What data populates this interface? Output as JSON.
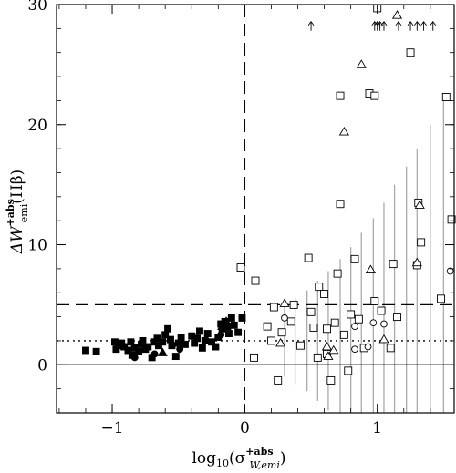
{
  "chart_data": {
    "type": "scatter",
    "title": "",
    "xlabel": {
      "base": "log",
      "sub": "10",
      "open": "(σ",
      "sup": "+abs",
      "subscript": "W,emi",
      "close": ")"
    },
    "ylabel": {
      "delta": "ΔW",
      "sup": "+abs",
      "sub": "emi",
      "rest": "(Hβ)"
    },
    "xlim": [
      -1.42,
      1.58
    ],
    "ylim": [
      -4,
      30
    ],
    "x_ticks": [
      -1,
      0,
      1
    ],
    "x_tick_labels": [
      "−1",
      "0",
      "1"
    ],
    "y_ticks": [
      0,
      10,
      20,
      30
    ],
    "y_tick_labels": [
      "0",
      "10",
      "20",
      "30"
    ],
    "reference_lines": [
      {
        "orientation": "h",
        "value": 0,
        "style": "solid"
      },
      {
        "orientation": "h",
        "value": 5,
        "style": "dashed"
      },
      {
        "orientation": "h",
        "value": 2,
        "style": "dotted"
      },
      {
        "orientation": "v",
        "value": 0,
        "style": "dashed"
      }
    ],
    "series": [
      {
        "marker": "filled-square",
        "points": [
          [
            -1.2,
            1.2
          ],
          [
            -1.12,
            1.1
          ],
          [
            -0.98,
            1.9
          ],
          [
            -0.97,
            1.3
          ],
          [
            -0.95,
            1.6
          ],
          [
            -0.93,
            1.8
          ],
          [
            -0.91,
            1.5
          ],
          [
            -0.88,
            1.2
          ],
          [
            -0.86,
            1.9
          ],
          [
            -0.85,
            0.8
          ],
          [
            -0.83,
            1.4
          ],
          [
            -0.8,
            1.1
          ],
          [
            -0.78,
            1.7
          ],
          [
            -0.77,
            2.0
          ],
          [
            -0.75,
            1.3
          ],
          [
            -0.73,
            1.5
          ],
          [
            -0.7,
            0.6
          ],
          [
            -0.68,
            1.9
          ],
          [
            -0.66,
            2.2
          ],
          [
            -0.65,
            1.6
          ],
          [
            -0.62,
            1.9
          ],
          [
            -0.6,
            2.5
          ],
          [
            -0.58,
            3.0
          ],
          [
            -0.56,
            2.1
          ],
          [
            -0.55,
            1.6
          ],
          [
            -0.52,
            0.7
          ],
          [
            -0.5,
            1.8
          ],
          [
            -0.48,
            2.3
          ],
          [
            -0.45,
            1.7
          ],
          [
            -0.4,
            2.4
          ],
          [
            -0.38,
            1.8
          ],
          [
            -0.36,
            2.2
          ],
          [
            -0.34,
            2.8
          ],
          [
            -0.32,
            1.4
          ],
          [
            -0.3,
            2.0
          ],
          [
            -0.28,
            2.6
          ],
          [
            -0.25,
            1.9
          ],
          [
            -0.22,
            1.5
          ],
          [
            -0.2,
            2.3
          ],
          [
            -0.18,
            3.4
          ],
          [
            -0.17,
            3.0
          ],
          [
            -0.15,
            3.6
          ],
          [
            -0.13,
            3.2
          ],
          [
            -0.12,
            2.6
          ],
          [
            -0.1,
            3.9
          ],
          [
            -0.08,
            3.3
          ],
          [
            -0.05,
            2.7
          ],
          [
            -0.02,
            3.9
          ]
        ]
      },
      {
        "marker": "filled-circle",
        "points": [
          [
            -0.92,
            1.6
          ],
          [
            -0.83,
            0.6
          ],
          [
            -0.68,
            0.9
          ],
          [
            -0.49,
            1.3
          ],
          [
            -0.18,
            2.5
          ]
        ]
      },
      {
        "marker": "filled-triangle",
        "points": [
          [
            -0.62,
            1.0
          ],
          [
            -0.17,
            3.2
          ],
          [
            -0.14,
            3.6
          ]
        ]
      },
      {
        "marker": "open-square",
        "points": [
          [
            -0.03,
            8.1
          ],
          [
            0.07,
            0.6
          ],
          [
            0.08,
            7.0
          ],
          [
            0.17,
            3.2
          ],
          [
            0.2,
            2.0
          ],
          [
            0.22,
            4.8
          ],
          [
            0.28,
            2.7
          ],
          [
            0.35,
            3.6
          ],
          [
            0.37,
            5.0
          ],
          [
            0.42,
            1.6
          ],
          [
            0.48,
            8.9
          ],
          [
            0.5,
            4.4
          ],
          [
            0.52,
            3.1
          ],
          [
            0.55,
            0.6
          ],
          [
            0.56,
            6.5
          ],
          [
            0.6,
            5.9
          ],
          [
            0.62,
            0.9
          ],
          [
            0.65,
            -1.3
          ],
          [
            0.68,
            3.5
          ],
          [
            0.7,
            7.6
          ],
          [
            0.72,
            22.4
          ],
          [
            0.72,
            13.4
          ],
          [
            0.75,
            2.5
          ],
          [
            0.78,
            -0.5
          ],
          [
            0.8,
            4.2
          ],
          [
            0.83,
            8.8
          ],
          [
            0.86,
            3.8
          ],
          [
            0.9,
            1.4
          ],
          [
            0.94,
            22.6
          ],
          [
            0.98,
            22.4
          ],
          [
            0.98,
            5.3
          ],
          [
            1.0,
            29.7
          ],
          [
            1.03,
            4.5
          ],
          [
            1.1,
            1.4
          ],
          [
            1.12,
            8.4
          ],
          [
            1.15,
            4.0
          ],
          [
            1.25,
            26.0
          ],
          [
            1.3,
            8.3
          ],
          [
            1.31,
            13.5
          ],
          [
            1.33,
            10.2
          ],
          [
            1.48,
            5.5
          ],
          [
            1.52,
            22.3
          ],
          [
            1.56,
            12.1
          ],
          [
            0.25,
            -1.3
          ],
          [
            0.62,
            3.0
          ]
        ]
      },
      {
        "marker": "open-circle",
        "points": [
          [
            0.3,
            3.9
          ],
          [
            0.83,
            3.2
          ],
          [
            0.83,
            1.3
          ],
          [
            0.93,
            1.5
          ],
          [
            0.97,
            3.5
          ],
          [
            1.05,
            3.4
          ],
          [
            1.55,
            7.8
          ]
        ]
      },
      {
        "marker": "open-triangle",
        "points": [
          [
            0.27,
            1.8
          ],
          [
            0.3,
            5.1
          ],
          [
            0.62,
            1.5
          ],
          [
            0.63,
            0.7
          ],
          [
            0.67,
            1.2
          ],
          [
            0.75,
            19.4
          ],
          [
            0.88,
            25.0
          ],
          [
            0.95,
            7.9
          ],
          [
            1.05,
            2.1
          ],
          [
            1.15,
            29.1
          ],
          [
            1.3,
            8.5
          ],
          [
            1.32,
            13.3
          ]
        ]
      }
    ],
    "error_bar_x": [
      0.3,
      0.38,
      0.47,
      0.55,
      0.63,
      0.72,
      0.8,
      0.88,
      0.97,
      1.05,
      1.13,
      1.22,
      1.3,
      1.4,
      1.5
    ],
    "error_bar_half": [
      3.0,
      3.6,
      4.2,
      5.0,
      5.8,
      6.8,
      7.8,
      9.0,
      10.2,
      11.5,
      13.0,
      14.5,
      16.0,
      18.0,
      20.0
    ],
    "lower_limits": [
      [
        0.5,
        28.2
      ],
      [
        0.98,
        28.2
      ],
      [
        1.0,
        28.2
      ],
      [
        1.02,
        28.2
      ],
      [
        1.05,
        28.2
      ],
      [
        1.16,
        28.2
      ],
      [
        1.25,
        28.2
      ],
      [
        1.3,
        28.2
      ],
      [
        1.35,
        28.2
      ],
      [
        1.42,
        28.2
      ]
    ]
  }
}
